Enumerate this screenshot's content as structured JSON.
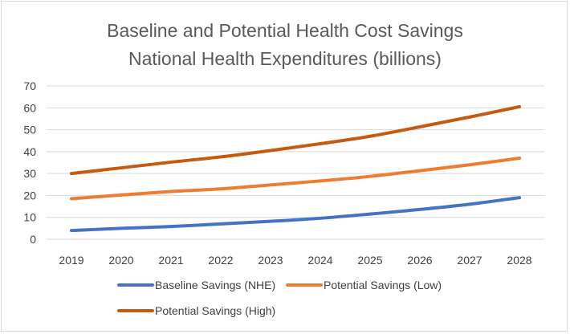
{
  "chart_data": {
    "type": "line",
    "title": "Baseline and Potential Health Cost Savings",
    "subtitle": "National Health Expenditures (billions)",
    "xlabel": "",
    "ylabel": "",
    "categories": [
      "2019",
      "2020",
      "2021",
      "2022",
      "2023",
      "2024",
      "2025",
      "2026",
      "2027",
      "2028"
    ],
    "ylim": [
      0,
      70
    ],
    "yticks": [
      0,
      10,
      20,
      30,
      40,
      50,
      60,
      70
    ],
    "grid": "horizontal",
    "legend_position": "bottom",
    "series": [
      {
        "name": "Baseline Savings (NHE)",
        "color": "#4472c4",
        "values": [
          4.0,
          5.0,
          5.8,
          7.0,
          8.2,
          9.6,
          11.5,
          13.6,
          16.0,
          19.0
        ]
      },
      {
        "name": "Potential Savings (Low)",
        "color": "#ed7d31",
        "values": [
          18.5,
          20.2,
          21.8,
          23.0,
          24.8,
          26.6,
          28.7,
          31.3,
          34.0,
          37.0
        ]
      },
      {
        "name": "Potential Savings (High)",
        "color": "#c55a11",
        "values": [
          30.0,
          32.6,
          35.2,
          37.6,
          40.5,
          43.6,
          47.0,
          51.3,
          55.8,
          60.5
        ]
      }
    ]
  }
}
